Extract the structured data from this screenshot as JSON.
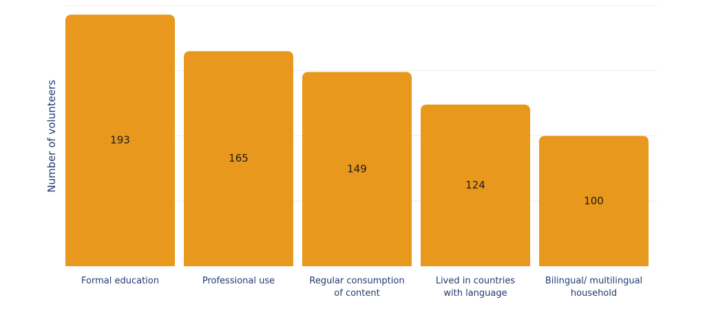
{
  "chart_data": {
    "type": "bar",
    "title": "",
    "xlabel": "",
    "ylabel": "Number of volunteers",
    "categories": [
      "Formal education",
      "Professional use",
      "Regular consumption of content",
      "Lived in countries with language",
      "Bilingual/ multilingual household"
    ],
    "category_lines": [
      [
        "Formal education"
      ],
      [
        "Professional use"
      ],
      [
        "Regular consumption",
        "of content"
      ],
      [
        "Lived in countries",
        "with language"
      ],
      [
        "Bilingual/ multilingual",
        "household"
      ]
    ],
    "values": [
      193,
      165,
      149,
      124,
      100
    ],
    "ylim": [
      0,
      200
    ],
    "grid": true,
    "y_tick_labels_shown": false,
    "legend": "none",
    "colors": {
      "bar": "#E8991D",
      "grid": "#ececec",
      "label_text": "#1f3a6e",
      "value_text": "#1a1a1a"
    }
  }
}
